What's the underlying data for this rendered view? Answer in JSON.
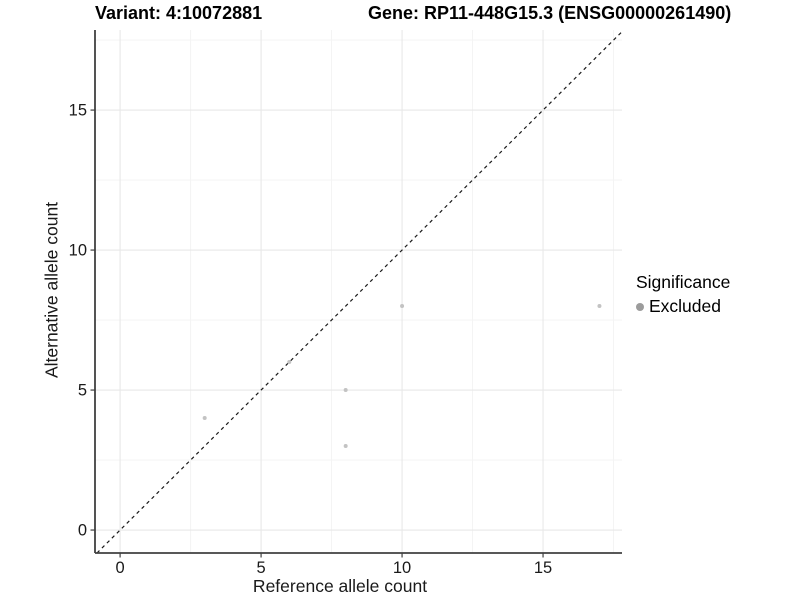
{
  "header": {
    "variant_title": "Variant: 4:10072881",
    "gene_title": "Gene: RP11-448G15.3 (ENSG00000261490)"
  },
  "chart_data": {
    "type": "scatter",
    "xlabel": "Reference allele count",
    "ylabel": "Alternative allele count",
    "x_ticks": [
      0,
      5,
      10,
      15
    ],
    "y_ticks": [
      0,
      5,
      10,
      15
    ],
    "x_minor_ticks": [
      2.5,
      7.5,
      12.5,
      17.5
    ],
    "y_minor_ticks": [
      2.5,
      7.5,
      12.5,
      17.5
    ],
    "xlim": [
      -0.89,
      17.8
    ],
    "ylim": [
      -0.82,
      17.86
    ],
    "grid": "major and minor, light gray on white",
    "identity_line": {
      "style": "dashed",
      "color": "#1a1a1a"
    },
    "series": [
      {
        "name": "Excluded",
        "color": "#c3c3c3",
        "points": [
          {
            "x": 3,
            "y": 4
          },
          {
            "x": 6,
            "y": 6
          },
          {
            "x": 8,
            "y": 3
          },
          {
            "x": 8,
            "y": 5
          },
          {
            "x": 10,
            "y": 8
          },
          {
            "x": 17,
            "y": 8
          }
        ]
      }
    ],
    "legend": {
      "position": "right",
      "title": "Significance",
      "items": [
        {
          "label": "Excluded",
          "marker_color": "#9c9c9c"
        }
      ]
    },
    "colors": {
      "grid_major": "#e8e8e8",
      "grid_minor": "#f3f3f3",
      "axis_line": "#404040",
      "tick_text": "#1a1a1a"
    }
  }
}
